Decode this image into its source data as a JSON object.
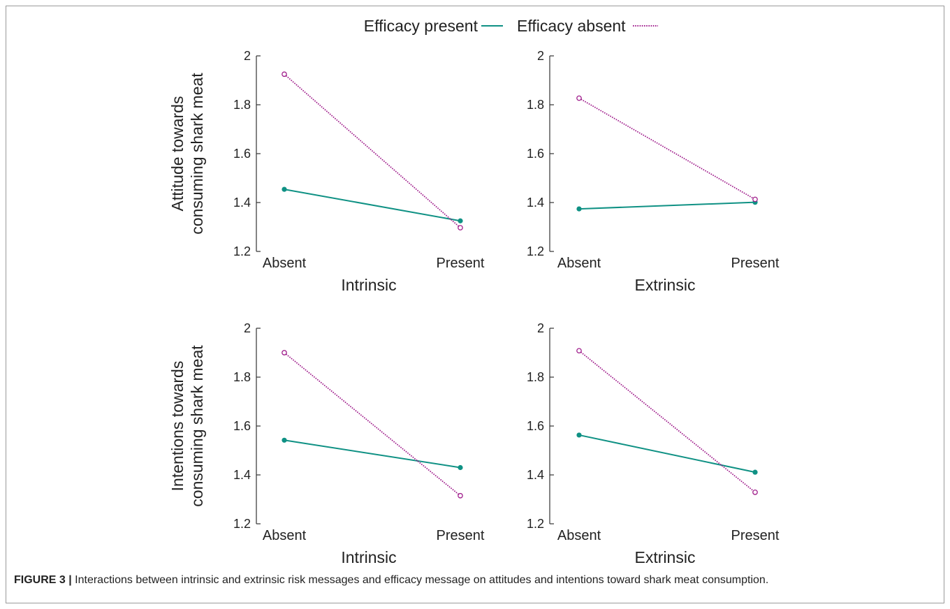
{
  "legend": {
    "entries": [
      {
        "label": "Efficacy present",
        "color": "#0f9184",
        "style": "solid",
        "marker": "filled-circle"
      },
      {
        "label": "Efficacy absent",
        "color": "#a01e8c",
        "style": "dotted",
        "marker": "open-circle"
      }
    ],
    "placement": "top-center"
  },
  "chart_data": [
    {
      "type": "line",
      "ylabel": [
        "Attitude towards",
        "consuming shark meat"
      ],
      "xlabel": "Intrinsic",
      "categories": [
        "Absent",
        "Present"
      ],
      "ylim": [
        1.2,
        2.0
      ],
      "yticks": [
        "1.2",
        "1.4",
        "1.6",
        "1.8",
        "2"
      ],
      "series": [
        {
          "name": "Efficacy present",
          "values": [
            1.454,
            1.325
          ]
        },
        {
          "name": "Efficacy absent",
          "values": [
            1.925,
            1.297
          ]
        }
      ]
    },
    {
      "type": "line",
      "ylabel": [],
      "xlabel": "Extrinsic",
      "categories": [
        "Absent",
        "Present"
      ],
      "ylim": [
        1.2,
        2.0
      ],
      "yticks": [
        "1.2",
        "1.4",
        "1.6",
        "1.8",
        "2"
      ],
      "series": [
        {
          "name": "Efficacy present",
          "values": [
            1.374,
            1.401
          ]
        },
        {
          "name": "Efficacy absent",
          "values": [
            1.827,
            1.413
          ]
        }
      ]
    },
    {
      "type": "line",
      "ylabel": [
        "Intentions towards",
        "consuming shark meat"
      ],
      "xlabel": "Intrinsic",
      "categories": [
        "Absent",
        "Present"
      ],
      "ylim": [
        1.2,
        2.0
      ],
      "yticks": [
        "1.2",
        "1.4",
        "1.6",
        "1.8",
        "2"
      ],
      "series": [
        {
          "name": "Efficacy present",
          "values": [
            1.542,
            1.43
          ]
        },
        {
          "name": "Efficacy absent",
          "values": [
            1.9,
            1.315
          ]
        }
      ]
    },
    {
      "type": "line",
      "ylabel": [],
      "xlabel": "Extrinsic",
      "categories": [
        "Absent",
        "Present"
      ],
      "ylim": [
        1.2,
        2.0
      ],
      "yticks": [
        "1.2",
        "1.4",
        "1.6",
        "1.8",
        "2"
      ],
      "series": [
        {
          "name": "Efficacy present",
          "values": [
            1.563,
            1.411
          ]
        },
        {
          "name": "Efficacy absent",
          "values": [
            1.908,
            1.329
          ]
        }
      ]
    }
  ],
  "caption": {
    "label": "FIGURE 3 |",
    "text": " Interactions between intrinsic and extrinsic risk messages and efficacy message on attitudes and intentions toward shark meat consumption."
  }
}
